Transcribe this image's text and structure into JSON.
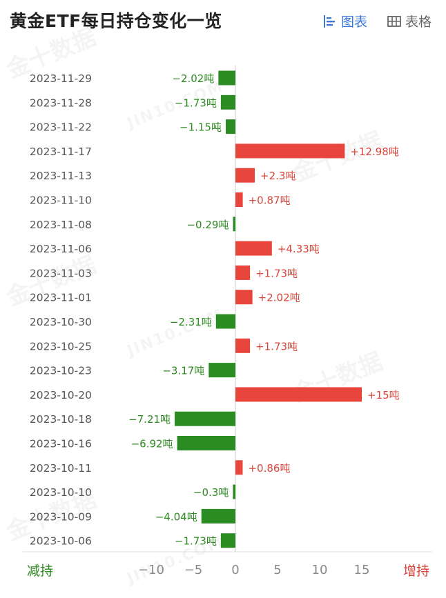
{
  "header": {
    "title": "黄金ETF每日持仓变化一览",
    "view_chart_label": "图表",
    "view_table_label": "表格"
  },
  "watermark": {
    "text_cn": "金十数据",
    "text_en": "JIN10.COM"
  },
  "labels": {
    "decrease": "减持",
    "increase": "增持"
  },
  "colors": {
    "positive": "#e8453c",
    "negative": "#2b8c24",
    "positive_text": "#d9453a",
    "negative_text": "#2e8b22",
    "active": "#3a78d8"
  },
  "chart_data": {
    "type": "bar",
    "orientation": "horizontal",
    "unit": "吨",
    "categories": [
      "2023-11-29",
      "2023-11-28",
      "2023-11-22",
      "2023-11-17",
      "2023-11-13",
      "2023-11-10",
      "2023-11-08",
      "2023-11-06",
      "2023-11-03",
      "2023-11-01",
      "2023-10-30",
      "2023-10-25",
      "2023-10-23",
      "2023-10-20",
      "2023-10-18",
      "2023-10-16",
      "2023-10-11",
      "2023-10-10",
      "2023-10-09",
      "2023-10-06"
    ],
    "values": [
      -2.02,
      -1.73,
      -1.15,
      12.98,
      2.3,
      0.87,
      -0.29,
      4.33,
      1.73,
      2.02,
      -2.31,
      1.73,
      -3.17,
      15,
      -7.21,
      -6.92,
      0.86,
      -0.3,
      -4.04,
      -1.73
    ],
    "data_labels": [
      "−2.02吨",
      "−1.73吨",
      "−1.15吨",
      "+12.98吨",
      "+2.3吨",
      "+0.87吨",
      "−0.29吨",
      "+4.33吨",
      "+1.73吨",
      "+2.02吨",
      "−2.31吨",
      "+1.73吨",
      "−3.17吨",
      "+15吨",
      "−7.21吨",
      "−6.92吨",
      "+0.86吨",
      "−0.3吨",
      "−4.04吨",
      "−1.73吨"
    ],
    "xticks": [
      "−10",
      "−5",
      "0",
      "5",
      "10",
      "15"
    ],
    "xtick_values": [
      -10,
      -5,
      0,
      5,
      10,
      15
    ],
    "xlim": [
      -12.5,
      17
    ],
    "grid": false
  }
}
